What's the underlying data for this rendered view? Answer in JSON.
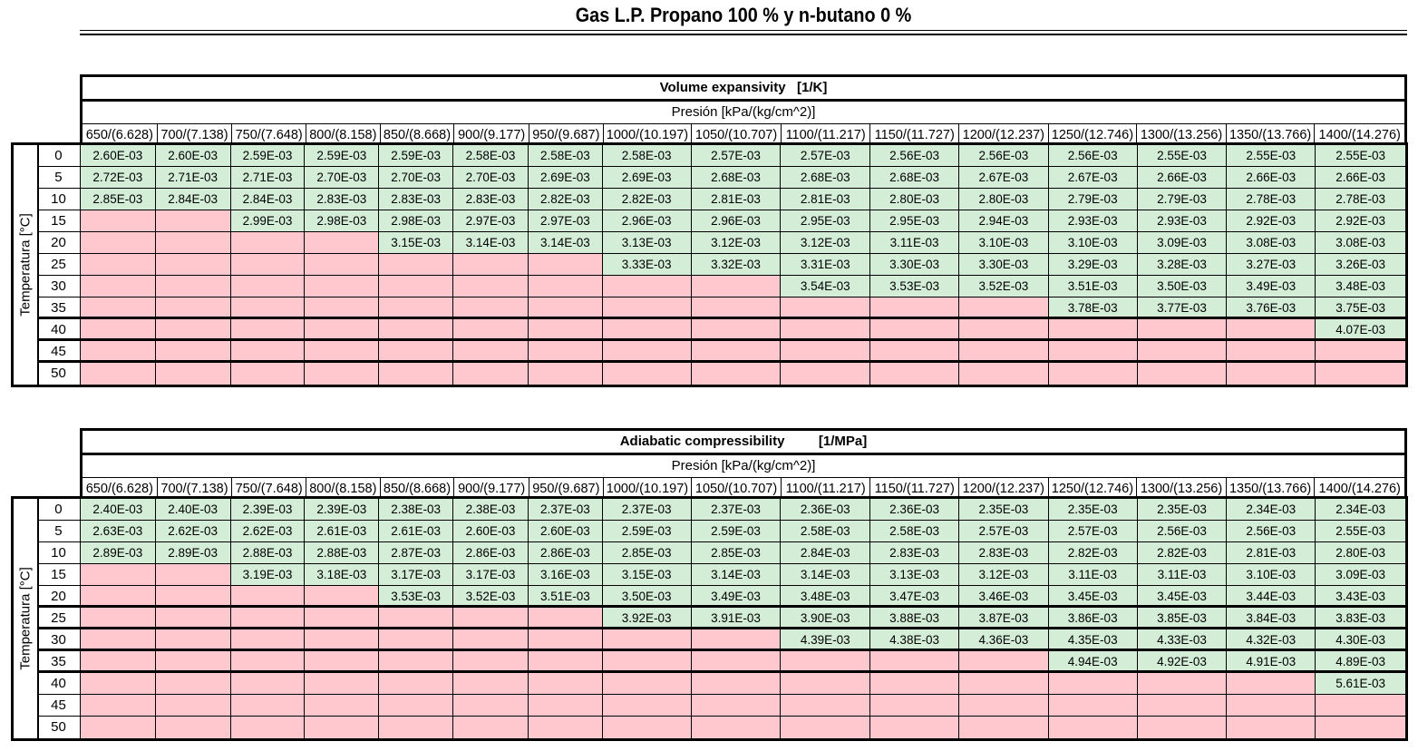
{
  "title": "Gas L.P.   Propano 100 % y n-butano 0 %",
  "colors": {
    "value_cell": "#d3edd7",
    "empty_cell": "#ffc7ce"
  },
  "pressure_label": "Presión [kPa/(kg/cm^2)]",
  "temperature_label": "Temperatura [°C]",
  "pressures": [
    "650/(6.628)",
    "700/(7.138)",
    "750/(7.648)",
    "800/(8.158)",
    "850/(8.668)",
    "900/(9.177)",
    "950/(9.687)",
    "1000/(10.197)",
    "1050/(10.707)",
    "1100/(11.217)",
    "1150/(11.727)",
    "1200/(12.237)",
    "1250/(12.746)",
    "1300/(13.256)",
    "1350/(13.766)",
    "1400/(14.276)"
  ],
  "temperatures": [
    "0",
    "5",
    "10",
    "15",
    "20",
    "25",
    "30",
    "35",
    "40",
    "45",
    "50"
  ],
  "tables": [
    {
      "title": "Volume expansivity   [1/K]",
      "rows": [
        [
          "2.60E-03",
          "2.60E-03",
          "2.59E-03",
          "2.59E-03",
          "2.59E-03",
          "2.58E-03",
          "2.58E-03",
          "2.58E-03",
          "2.57E-03",
          "2.57E-03",
          "2.56E-03",
          "2.56E-03",
          "2.56E-03",
          "2.55E-03",
          "2.55E-03",
          "2.55E-03"
        ],
        [
          "2.72E-03",
          "2.71E-03",
          "2.71E-03",
          "2.70E-03",
          "2.70E-03",
          "2.70E-03",
          "2.69E-03",
          "2.69E-03",
          "2.68E-03",
          "2.68E-03",
          "2.68E-03",
          "2.67E-03",
          "2.67E-03",
          "2.66E-03",
          "2.66E-03",
          "2.66E-03"
        ],
        [
          "2.85E-03",
          "2.84E-03",
          "2.84E-03",
          "2.83E-03",
          "2.83E-03",
          "2.83E-03",
          "2.82E-03",
          "2.82E-03",
          "2.81E-03",
          "2.81E-03",
          "2.80E-03",
          "2.80E-03",
          "2.79E-03",
          "2.79E-03",
          "2.78E-03",
          "2.78E-03"
        ],
        [
          null,
          null,
          "2.99E-03",
          "2.98E-03",
          "2.98E-03",
          "2.97E-03",
          "2.97E-03",
          "2.96E-03",
          "2.96E-03",
          "2.95E-03",
          "2.95E-03",
          "2.94E-03",
          "2.93E-03",
          "2.93E-03",
          "2.92E-03",
          "2.92E-03"
        ],
        [
          null,
          null,
          null,
          null,
          "3.15E-03",
          "3.14E-03",
          "3.14E-03",
          "3.13E-03",
          "3.12E-03",
          "3.12E-03",
          "3.11E-03",
          "3.10E-03",
          "3.10E-03",
          "3.09E-03",
          "3.08E-03",
          "3.08E-03"
        ],
        [
          null,
          null,
          null,
          null,
          null,
          null,
          null,
          "3.33E-03",
          "3.32E-03",
          "3.31E-03",
          "3.30E-03",
          "3.30E-03",
          "3.29E-03",
          "3.28E-03",
          "3.27E-03",
          "3.26E-03"
        ],
        [
          null,
          null,
          null,
          null,
          null,
          null,
          null,
          null,
          null,
          "3.54E-03",
          "3.53E-03",
          "3.52E-03",
          "3.51E-03",
          "3.50E-03",
          "3.49E-03",
          "3.48E-03"
        ],
        [
          null,
          null,
          null,
          null,
          null,
          null,
          null,
          null,
          null,
          null,
          null,
          null,
          "3.78E-03",
          "3.77E-03",
          "3.76E-03",
          "3.75E-03"
        ],
        [
          null,
          null,
          null,
          null,
          null,
          null,
          null,
          null,
          null,
          null,
          null,
          null,
          null,
          null,
          null,
          "4.07E-03"
        ],
        [
          null,
          null,
          null,
          null,
          null,
          null,
          null,
          null,
          null,
          null,
          null,
          null,
          null,
          null,
          null,
          null
        ],
        [
          null,
          null,
          null,
          null,
          null,
          null,
          null,
          null,
          null,
          null,
          null,
          null,
          null,
          null,
          null,
          null
        ]
      ]
    },
    {
      "title": "Adiabatic compressibility         [1/MPa]",
      "rows": [
        [
          "2.40E-03",
          "2.40E-03",
          "2.39E-03",
          "2.39E-03",
          "2.38E-03",
          "2.38E-03",
          "2.37E-03",
          "2.37E-03",
          "2.37E-03",
          "2.36E-03",
          "2.36E-03",
          "2.35E-03",
          "2.35E-03",
          "2.35E-03",
          "2.34E-03",
          "2.34E-03"
        ],
        [
          "2.63E-03",
          "2.62E-03",
          "2.62E-03",
          "2.61E-03",
          "2.61E-03",
          "2.60E-03",
          "2.60E-03",
          "2.59E-03",
          "2.59E-03",
          "2.58E-03",
          "2.58E-03",
          "2.57E-03",
          "2.57E-03",
          "2.56E-03",
          "2.56E-03",
          "2.55E-03"
        ],
        [
          "2.89E-03",
          "2.89E-03",
          "2.88E-03",
          "2.88E-03",
          "2.87E-03",
          "2.86E-03",
          "2.86E-03",
          "2.85E-03",
          "2.85E-03",
          "2.84E-03",
          "2.83E-03",
          "2.83E-03",
          "2.82E-03",
          "2.82E-03",
          "2.81E-03",
          "2.80E-03"
        ],
        [
          null,
          null,
          "3.19E-03",
          "3.18E-03",
          "3.17E-03",
          "3.17E-03",
          "3.16E-03",
          "3.15E-03",
          "3.14E-03",
          "3.14E-03",
          "3.13E-03",
          "3.12E-03",
          "3.11E-03",
          "3.11E-03",
          "3.10E-03",
          "3.09E-03"
        ],
        [
          null,
          null,
          null,
          null,
          "3.53E-03",
          "3.52E-03",
          "3.51E-03",
          "3.50E-03",
          "3.49E-03",
          "3.48E-03",
          "3.47E-03",
          "3.46E-03",
          "3.45E-03",
          "3.45E-03",
          "3.44E-03",
          "3.43E-03"
        ],
        [
          null,
          null,
          null,
          null,
          null,
          null,
          null,
          "3.92E-03",
          "3.91E-03",
          "3.90E-03",
          "3.88E-03",
          "3.87E-03",
          "3.86E-03",
          "3.85E-03",
          "3.84E-03",
          "3.83E-03"
        ],
        [
          null,
          null,
          null,
          null,
          null,
          null,
          null,
          null,
          null,
          "4.39E-03",
          "4.38E-03",
          "4.36E-03",
          "4.35E-03",
          "4.33E-03",
          "4.32E-03",
          "4.30E-03"
        ],
        [
          null,
          null,
          null,
          null,
          null,
          null,
          null,
          null,
          null,
          null,
          null,
          null,
          "4.94E-03",
          "4.92E-03",
          "4.91E-03",
          "4.89E-03"
        ],
        [
          null,
          null,
          null,
          null,
          null,
          null,
          null,
          null,
          null,
          null,
          null,
          null,
          null,
          null,
          null,
          "5.61E-03"
        ],
        [
          null,
          null,
          null,
          null,
          null,
          null,
          null,
          null,
          null,
          null,
          null,
          null,
          null,
          null,
          null,
          null
        ],
        [
          null,
          null,
          null,
          null,
          null,
          null,
          null,
          null,
          null,
          null,
          null,
          null,
          null,
          null,
          null,
          null
        ]
      ]
    }
  ]
}
